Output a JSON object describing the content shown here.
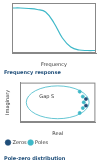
{
  "chart_data": [
    {
      "type": "line",
      "title": "Frequency response",
      "x_label": "Frequency",
      "x": [
        0,
        0.1,
        0.2,
        0.3,
        0.4,
        0.5,
        0.6,
        0.7,
        0.8,
        0.9,
        1
      ],
      "series": [
        {
          "name": "Frequency response",
          "color": "#3fb8c8",
          "values": [
            0.9,
            0.9,
            0.89,
            0.87,
            0.82,
            0.6,
            0.3,
            0.12,
            0.06,
            0.05,
            0.05
          ]
        }
      ],
      "xlim": [
        0,
        1
      ],
      "ylim": [
        0,
        1
      ],
      "grid": false,
      "tick_labels": false
    },
    {
      "type": "scatter",
      "title": "Pole-zero distribution",
      "x_label": "Real",
      "y_label": "Imaginary",
      "circle": {
        "center": [
          0,
          0
        ],
        "radius": 1,
        "color": "#3fb8c8"
      },
      "annotations": [
        {
          "text": "Gap S",
          "x": -0.35,
          "y": 0.35
        }
      ],
      "series": [
        {
          "name": "Zeros",
          "color": "#1f4e79",
          "marker": "circle",
          "x": [
            0.9,
            0.9
          ],
          "values": [
            0.2,
            -0.2
          ]
        },
        {
          "name": "Poles",
          "color": "#3fb8c8",
          "marker": "circle",
          "x": [
            0.7,
            0.8,
            0.83,
            0.8,
            0.7
          ],
          "values": [
            0.65,
            0.35,
            0,
            -0.35,
            -0.65
          ]
        }
      ],
      "xlim": [
        -1.2,
        1.2
      ],
      "ylim": [
        -1.2,
        1.2
      ],
      "grid": false,
      "tick_labels": false,
      "legend": "bottom left"
    }
  ]
}
